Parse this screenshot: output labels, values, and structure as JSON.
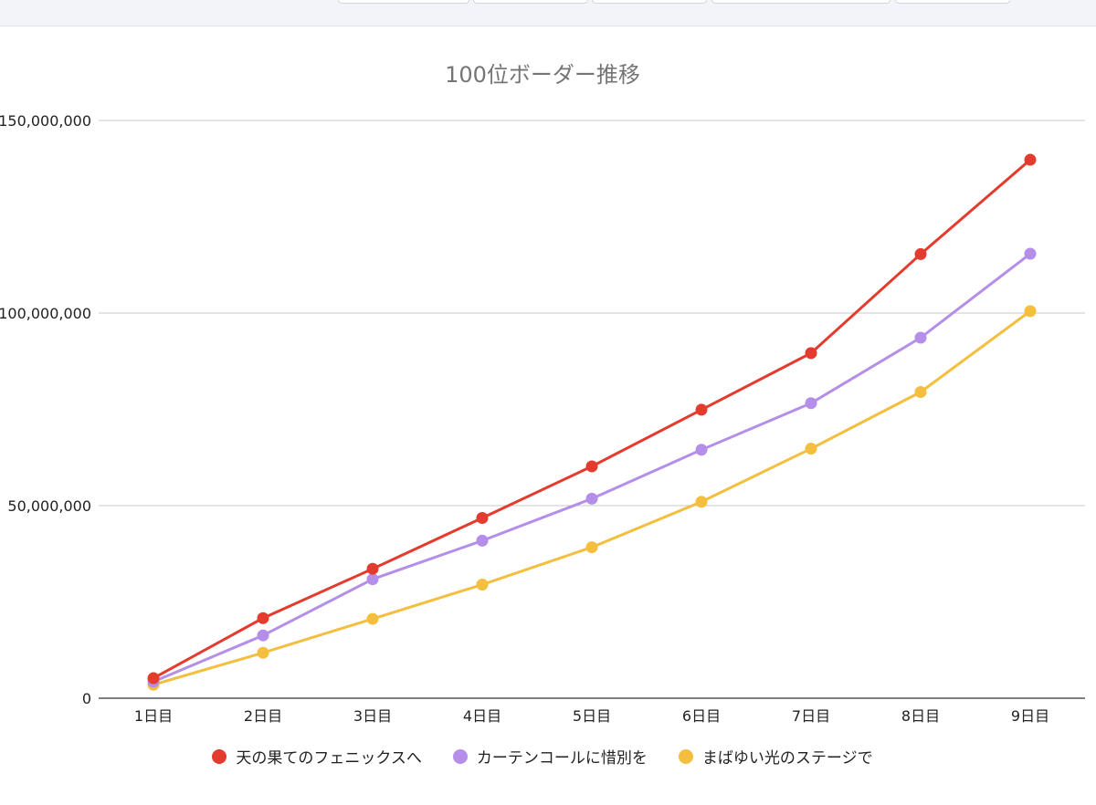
{
  "chart_data": {
    "type": "line",
    "title": "100位ボーダー推移",
    "xlabel": "",
    "ylabel": "",
    "categories": [
      "1日目",
      "2日目",
      "3日目",
      "4日目",
      "5日目",
      "6日目",
      "7日目",
      "8日目",
      "9日目"
    ],
    "ylim": [
      0,
      150000000
    ],
    "yticks": [
      0,
      50000000,
      100000000,
      150000000
    ],
    "ytick_labels": [
      "0",
      "50,000,000",
      "100,000,000",
      "150,000,000"
    ],
    "grid": true,
    "legend_position": "bottom",
    "series": [
      {
        "name": "天の果てのフェニックスへ",
        "color": "#e33b2e",
        "values": [
          5200000,
          20800000,
          33600000,
          46800000,
          60200000,
          74900000,
          89600000,
          115300000,
          139800000
        ]
      },
      {
        "name": "カーテンコールに惜別を",
        "color": "#b48ee8",
        "values": [
          4300000,
          16300000,
          30900000,
          40900000,
          51800000,
          64500000,
          76600000,
          93600000,
          115400000
        ]
      },
      {
        "name": "まばゆい光のステージで",
        "color": "#f4be3e",
        "values": [
          3500000,
          11800000,
          20600000,
          29500000,
          39200000,
          51000000,
          64800000,
          79500000,
          100500000
        ]
      }
    ]
  }
}
